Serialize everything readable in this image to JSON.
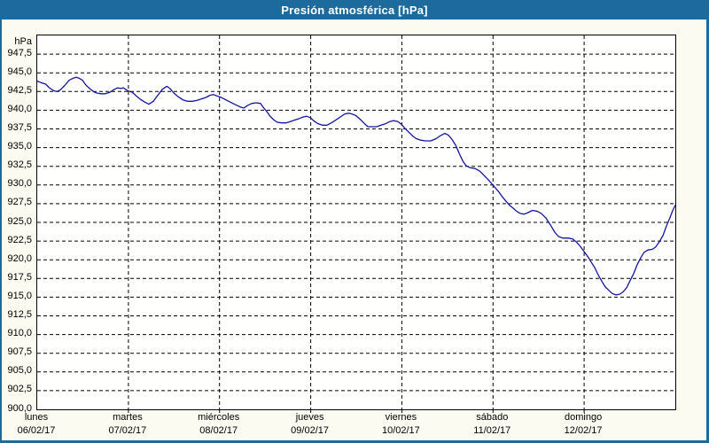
{
  "window": {
    "title": "Presión atmosférica [hPa]"
  },
  "colors": {
    "titlebar_bg": "#1c6b9c",
    "frame": "#1c6b9c",
    "line": "#1414a0",
    "grid": "#000000",
    "plot_bg": "#fffffd",
    "page_bg": "#fbfbf2",
    "text": "#000000"
  },
  "chart_data": {
    "type": "line",
    "title": "Presión atmosférica [hPa]",
    "unit_label": "hPa",
    "ylabel": "hPa",
    "ylim": [
      900,
      950
    ],
    "ytick_step": 2.5,
    "grid": "dashed",
    "legend": "none",
    "yticks": [
      {
        "v": 947.5,
        "label": "947,5"
      },
      {
        "v": 945.0,
        "label": "945,0"
      },
      {
        "v": 942.5,
        "label": "942,5"
      },
      {
        "v": 940.0,
        "label": "940,0"
      },
      {
        "v": 937.5,
        "label": "937,5"
      },
      {
        "v": 935.0,
        "label": "935,0"
      },
      {
        "v": 932.5,
        "label": "932,5"
      },
      {
        "v": 930.0,
        "label": "930,0"
      },
      {
        "v": 927.5,
        "label": "927,5"
      },
      {
        "v": 925.0,
        "label": "925,0"
      },
      {
        "v": 922.5,
        "label": "922,5"
      },
      {
        "v": 920.0,
        "label": "920,0"
      },
      {
        "v": 917.5,
        "label": "917,5"
      },
      {
        "v": 915.0,
        "label": "915,0"
      },
      {
        "v": 912.5,
        "label": "912,5"
      },
      {
        "v": 910.0,
        "label": "910,0"
      },
      {
        "v": 907.5,
        "label": "907,5"
      },
      {
        "v": 905.0,
        "label": "905,0"
      },
      {
        "v": 902.5,
        "label": "902,5"
      },
      {
        "v": 900.0,
        "label": "900,0"
      }
    ],
    "days": [
      {
        "name": "lunes",
        "date": "06/02/17"
      },
      {
        "name": "martes",
        "date": "07/02/17"
      },
      {
        "name": "miércoles",
        "date": "08/02/17"
      },
      {
        "name": "jueves",
        "date": "09/02/17"
      },
      {
        "name": "viernes",
        "date": "10/02/17"
      },
      {
        "name": "sábado",
        "date": "11/02/17"
      },
      {
        "name": "domingo",
        "date": "12/02/17"
      }
    ],
    "x_span_days": 7,
    "series": [
      {
        "name": "Presión atmosférica",
        "color": "#1414a0",
        "points": [
          [
            0.0,
            943.9
          ],
          [
            0.006,
            943.7
          ],
          [
            0.013,
            943.5
          ],
          [
            0.019,
            943.0
          ],
          [
            0.026,
            942.6
          ],
          [
            0.031,
            942.5
          ],
          [
            0.036,
            942.7
          ],
          [
            0.043,
            943.3
          ],
          [
            0.05,
            944.0
          ],
          [
            0.057,
            944.3
          ],
          [
            0.061,
            944.4
          ],
          [
            0.065,
            944.3
          ],
          [
            0.071,
            944.0
          ],
          [
            0.076,
            943.4
          ],
          [
            0.082,
            942.9
          ],
          [
            0.088,
            942.5
          ],
          [
            0.093,
            942.3
          ],
          [
            0.1,
            942.2
          ],
          [
            0.107,
            942.2
          ],
          [
            0.114,
            942.4
          ],
          [
            0.121,
            942.8
          ],
          [
            0.126,
            943.0
          ],
          [
            0.131,
            942.9
          ],
          [
            0.135,
            943.0
          ],
          [
            0.142,
            942.6
          ],
          [
            0.149,
            942.4
          ],
          [
            0.154,
            942.0
          ],
          [
            0.161,
            941.5
          ],
          [
            0.168,
            941.1
          ],
          [
            0.175,
            940.8
          ],
          [
            0.182,
            941.2
          ],
          [
            0.189,
            942.0
          ],
          [
            0.196,
            942.8
          ],
          [
            0.203,
            943.2
          ],
          [
            0.208,
            942.9
          ],
          [
            0.214,
            942.3
          ],
          [
            0.221,
            941.8
          ],
          [
            0.228,
            941.4
          ],
          [
            0.235,
            941.2
          ],
          [
            0.243,
            941.2
          ],
          [
            0.25,
            941.3
          ],
          [
            0.257,
            941.5
          ],
          [
            0.264,
            941.7
          ],
          [
            0.271,
            942.0
          ],
          [
            0.276,
            942.1
          ],
          [
            0.282,
            941.9
          ],
          [
            0.286,
            941.8
          ],
          [
            0.293,
            941.5
          ],
          [
            0.3,
            941.2
          ],
          [
            0.307,
            940.9
          ],
          [
            0.314,
            940.6
          ],
          [
            0.319,
            940.4
          ],
          [
            0.324,
            940.3
          ],
          [
            0.329,
            940.6
          ],
          [
            0.336,
            940.9
          ],
          [
            0.343,
            941.0
          ],
          [
            0.35,
            940.9
          ],
          [
            0.354,
            940.4
          ],
          [
            0.36,
            939.8
          ],
          [
            0.365,
            939.2
          ],
          [
            0.371,
            938.7
          ],
          [
            0.376,
            938.4
          ],
          [
            0.383,
            938.3
          ],
          [
            0.39,
            938.3
          ],
          [
            0.397,
            938.5
          ],
          [
            0.404,
            938.7
          ],
          [
            0.411,
            938.9
          ],
          [
            0.417,
            939.1
          ],
          [
            0.422,
            939.2
          ],
          [
            0.428,
            939.0
          ],
          [
            0.433,
            938.6
          ],
          [
            0.44,
            938.2
          ],
          [
            0.447,
            938.0
          ],
          [
            0.454,
            938.0
          ],
          [
            0.461,
            938.3
          ],
          [
            0.468,
            938.7
          ],
          [
            0.475,
            939.1
          ],
          [
            0.482,
            939.5
          ],
          [
            0.488,
            939.6
          ],
          [
            0.493,
            939.5
          ],
          [
            0.499,
            939.3
          ],
          [
            0.506,
            938.8
          ],
          [
            0.513,
            938.2
          ],
          [
            0.518,
            937.8
          ],
          [
            0.525,
            937.8
          ],
          [
            0.532,
            937.8
          ],
          [
            0.539,
            938.0
          ],
          [
            0.546,
            938.2
          ],
          [
            0.553,
            938.5
          ],
          [
            0.558,
            938.6
          ],
          [
            0.565,
            938.5
          ],
          [
            0.571,
            938.1
          ],
          [
            0.576,
            937.6
          ],
          [
            0.583,
            937.0
          ],
          [
            0.589,
            936.5
          ],
          [
            0.594,
            936.2
          ],
          [
            0.601,
            936.0
          ],
          [
            0.608,
            935.9
          ],
          [
            0.617,
            935.9
          ],
          [
            0.625,
            936.2
          ],
          [
            0.632,
            936.6
          ],
          [
            0.639,
            936.9
          ],
          [
            0.644,
            936.7
          ],
          [
            0.65,
            936.1
          ],
          [
            0.656,
            935.3
          ],
          [
            0.661,
            934.3
          ],
          [
            0.667,
            933.2
          ],
          [
            0.672,
            932.6
          ],
          [
            0.679,
            932.3
          ],
          [
            0.686,
            932.2
          ],
          [
            0.693,
            931.9
          ],
          [
            0.7,
            931.3
          ],
          [
            0.707,
            930.7
          ],
          [
            0.713,
            930.1
          ],
          [
            0.718,
            929.6
          ],
          [
            0.724,
            929.0
          ],
          [
            0.729,
            928.4
          ],
          [
            0.735,
            927.8
          ],
          [
            0.74,
            927.3
          ],
          [
            0.746,
            926.9
          ],
          [
            0.751,
            926.5
          ],
          [
            0.757,
            926.2
          ],
          [
            0.763,
            926.1
          ],
          [
            0.769,
            926.3
          ],
          [
            0.776,
            926.6
          ],
          [
            0.783,
            926.5
          ],
          [
            0.79,
            926.2
          ],
          [
            0.797,
            925.6
          ],
          [
            0.804,
            924.7
          ],
          [
            0.811,
            923.7
          ],
          [
            0.817,
            923.1
          ],
          [
            0.824,
            922.9
          ],
          [
            0.832,
            922.9
          ],
          [
            0.839,
            922.8
          ],
          [
            0.846,
            922.3
          ],
          [
            0.851,
            921.8
          ],
          [
            0.857,
            921.1
          ],
          [
            0.863,
            920.4
          ],
          [
            0.868,
            919.7
          ],
          [
            0.874,
            918.9
          ],
          [
            0.879,
            918.0
          ],
          [
            0.885,
            917.1
          ],
          [
            0.89,
            916.4
          ],
          [
            0.896,
            915.9
          ],
          [
            0.901,
            915.5
          ],
          [
            0.907,
            915.3
          ],
          [
            0.913,
            915.4
          ],
          [
            0.918,
            915.7
          ],
          [
            0.924,
            916.3
          ],
          [
            0.929,
            917.2
          ],
          [
            0.935,
            918.2
          ],
          [
            0.94,
            919.3
          ],
          [
            0.946,
            920.3
          ],
          [
            0.951,
            921.0
          ],
          [
            0.957,
            921.3
          ],
          [
            0.964,
            921.4
          ],
          [
            0.969,
            921.7
          ],
          [
            0.975,
            922.4
          ],
          [
            0.981,
            923.3
          ],
          [
            0.986,
            924.5
          ],
          [
            0.992,
            925.7
          ],
          [
            0.996,
            926.6
          ],
          [
            1.0,
            927.3
          ]
        ]
      }
    ]
  }
}
